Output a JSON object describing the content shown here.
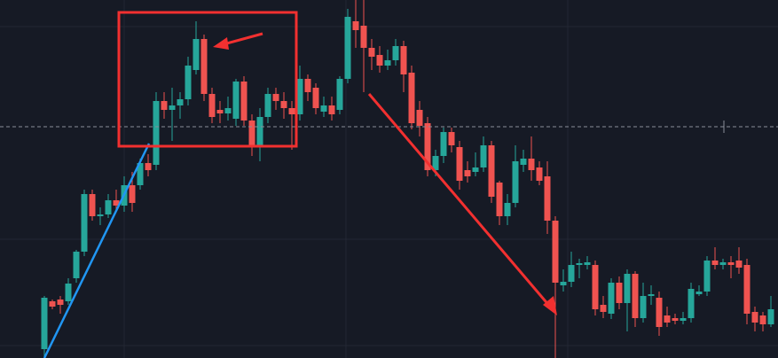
{
  "chart_data": {
    "type": "candlestick",
    "up_color": "#26a69a",
    "down_color": "#ef5350",
    "ylim": [
      0,
      404
    ],
    "ohlc": [
      [
        10,
        70,
        0,
        68
      ],
      [
        64,
        66,
        55,
        58
      ],
      [
        66,
        70,
        50,
        60
      ],
      [
        64,
        90,
        60,
        84
      ],
      [
        90,
        122,
        85,
        120
      ],
      [
        120,
        190,
        115,
        185
      ],
      [
        185,
        190,
        155,
        160
      ],
      [
        160,
        170,
        150,
        162
      ],
      [
        162,
        185,
        158,
        178
      ],
      [
        178,
        190,
        165,
        172
      ],
      [
        172,
        205,
        165,
        195
      ],
      [
        195,
        210,
        165,
        175
      ],
      [
        195,
        225,
        190,
        220
      ],
      [
        220,
        230,
        205,
        212
      ],
      [
        218,
        300,
        212,
        290
      ],
      [
        290,
        300,
        270,
        280
      ],
      [
        280,
        305,
        245,
        285
      ],
      [
        285,
        300,
        270,
        292
      ],
      [
        292,
        340,
        285,
        330
      ],
      [
        325,
        380,
        320,
        360
      ],
      [
        360,
        365,
        290,
        298
      ],
      [
        298,
        305,
        265,
        272
      ],
      [
        280,
        290,
        265,
        276
      ],
      [
        276,
        295,
        268,
        282
      ],
      [
        270,
        315,
        262,
        312
      ],
      [
        312,
        318,
        262,
        268
      ],
      [
        268,
        275,
        228,
        238
      ],
      [
        238,
        282,
        222,
        272
      ],
      [
        272,
        305,
        265,
        298
      ],
      [
        298,
        305,
        280,
        290
      ],
      [
        290,
        300,
        270,
        282
      ],
      [
        282,
        290,
        235,
        275
      ],
      [
        275,
        330,
        268,
        315
      ],
      [
        315,
        320,
        290,
        300
      ],
      [
        305,
        310,
        275,
        282
      ],
      [
        278,
        295,
        272,
        285
      ],
      [
        285,
        295,
        268,
        275
      ],
      [
        280,
        318,
        275,
        315
      ],
      [
        315,
        394,
        310,
        385
      ],
      [
        380,
        404,
        350,
        370
      ],
      [
        375,
        404,
        300,
        350
      ],
      [
        350,
        360,
        325,
        340
      ],
      [
        342,
        352,
        322,
        330
      ],
      [
        330,
        348,
        325,
        336
      ],
      [
        336,
        360,
        330,
        352
      ],
      [
        352,
        358,
        300,
        320
      ],
      [
        322,
        330,
        258,
        265
      ],
      [
        280,
        290,
        250,
        262
      ],
      [
        265,
        272,
        205,
        212
      ],
      [
        212,
        235,
        205,
        228
      ],
      [
        228,
        260,
        220,
        255
      ],
      [
        255,
        260,
        232,
        240
      ],
      [
        238,
        245,
        190,
        200
      ],
      [
        212,
        222,
        198,
        205
      ],
      [
        210,
        232,
        205,
        215
      ],
      [
        215,
        250,
        210,
        240
      ],
      [
        240,
        245,
        175,
        182
      ],
      [
        198,
        200,
        150,
        160
      ],
      [
        160,
        185,
        150,
        175
      ],
      [
        175,
        240,
        170,
        222
      ],
      [
        218,
        235,
        210,
        225
      ],
      [
        225,
        250,
        200,
        212
      ],
      [
        215,
        222,
        195,
        200
      ],
      [
        205,
        222,
        140,
        155
      ],
      [
        155,
        160,
        0,
        85
      ],
      [
        82,
        100,
        75,
        86
      ],
      [
        86,
        120,
        80,
        105
      ],
      [
        105,
        112,
        90,
        107
      ],
      [
        105,
        115,
        100,
        108
      ],
      [
        105,
        110,
        48,
        55
      ],
      [
        60,
        70,
        45,
        52
      ],
      [
        50,
        90,
        44,
        85
      ],
      [
        85,
        92,
        55,
        62
      ],
      [
        62,
        100,
        30,
        95
      ],
      [
        95,
        98,
        35,
        45
      ],
      [
        45,
        85,
        40,
        70
      ],
      [
        70,
        82,
        60,
        72
      ],
      [
        68,
        75,
        25,
        35
      ],
      [
        48,
        58,
        35,
        40
      ],
      [
        45,
        50,
        38,
        42
      ],
      [
        42,
        52,
        38,
        45
      ],
      [
        45,
        85,
        40,
        78
      ],
      [
        72,
        82,
        70,
        75
      ],
      [
        75,
        115,
        70,
        110
      ],
      [
        110,
        125,
        100,
        105
      ],
      [
        105,
        112,
        100,
        108
      ],
      [
        108,
        115,
        90,
        105
      ],
      [
        110,
        125,
        95,
        102
      ],
      [
        105,
        112,
        38,
        50
      ],
      [
        52,
        58,
        30,
        40
      ],
      [
        48,
        52,
        30,
        38
      ],
      [
        38,
        70,
        35,
        55
      ]
    ]
  }
}
